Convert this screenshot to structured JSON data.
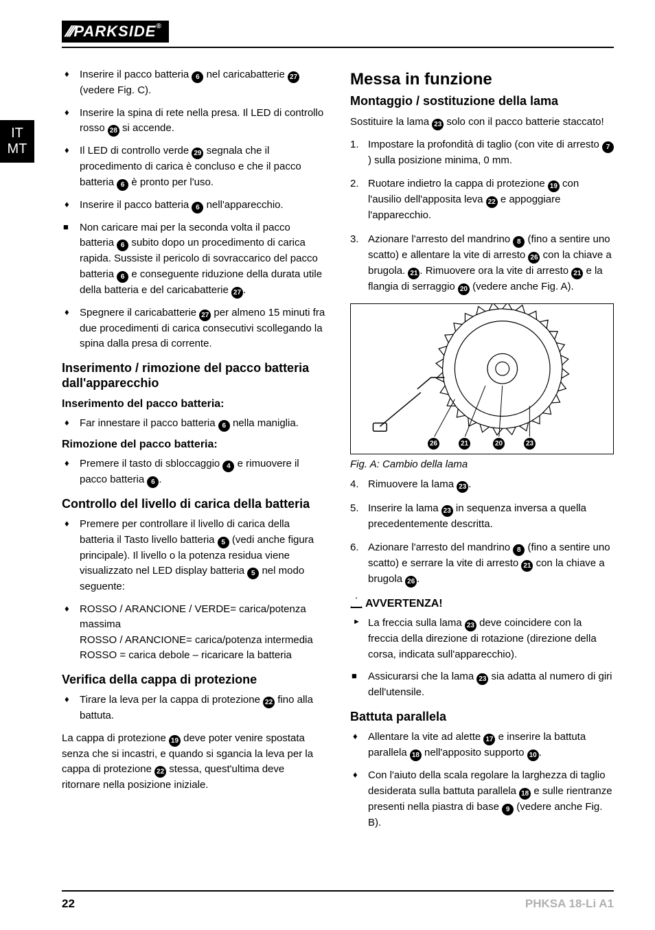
{
  "brand": "PARKSIDE",
  "lang_tab": [
    "IT",
    "MT"
  ],
  "left": {
    "bullets_top": [
      {
        "text_parts": [
          "Inserire il pacco batteria ",
          {
            "ref": "6"
          },
          " nel caricabatterie ",
          {
            "ref": "27"
          },
          " (vedere Fig. C)."
        ]
      },
      {
        "text_parts": [
          "Inserire la spina di rete nella presa. Il LED di controllo rosso ",
          {
            "ref": "28"
          },
          " si accende."
        ]
      },
      {
        "text_parts": [
          "Il LED di controllo verde ",
          {
            "ref": "29"
          },
          " segnala che il procedimento di carica è concluso e che il pacco batteria ",
          {
            "ref": "6"
          },
          " è pronto per l'uso."
        ]
      },
      {
        "text_parts": [
          "Inserire il pacco batteria ",
          {
            "ref": "6"
          },
          " nell'apparecchio."
        ]
      }
    ],
    "square_note": [
      {
        "text_parts": [
          "Non caricare mai per la seconda volta il pacco batteria ",
          {
            "ref": "6"
          },
          " subito dopo un procedimento di carica rapida. Sussiste il pericolo di sovraccarico del pacco batteria ",
          {
            "ref": "6"
          },
          " e conseguente riduzione della durata utile della batteria e del caricabatterie ",
          {
            "ref": "27"
          },
          "."
        ]
      }
    ],
    "bullets_mid": [
      {
        "text_parts": [
          "Spegnere il caricabatterie ",
          {
            "ref": "27"
          },
          " per almeno 15 minuti fra due procedimenti di carica consecutivi scollegando la spina dalla presa di corrente."
        ]
      }
    ],
    "h2_a": "Inserimento / rimozione del pacco batteria dall'apparecchio",
    "h3_a": "Inserimento del pacco batteria:",
    "bullets_a": [
      {
        "text_parts": [
          "Far innestare il pacco batteria ",
          {
            "ref": "6"
          },
          " nella maniglia."
        ]
      }
    ],
    "h3_b": "Rimozione del pacco batteria:",
    "bullets_b": [
      {
        "text_parts": [
          "Premere il tasto di sbloccaggio ",
          {
            "ref": "4"
          },
          " e rimuovere il pacco batteria ",
          {
            "ref": "6"
          },
          "."
        ]
      }
    ],
    "h2_c": "Controllo del livello di carica della batteria",
    "bullets_c": [
      {
        "text_parts": [
          "Premere per controllare il livello di carica della batteria il Tasto livello batteria ",
          {
            "ref": "5"
          },
          " (vedi anche figura principale). Il livello o la potenza residua viene visualizzato nel LED display batteria ",
          {
            "ref": "5"
          },
          " nel modo seguente:"
        ]
      },
      {
        "text_parts": [
          "ROSSO / ARANCIONE / VERDE= carica/potenza massima\nROSSO / ARANCIONE= carica/potenza intermedia\nROSSO = carica debole – ricaricare la batteria"
        ]
      }
    ],
    "h2_d": "Verifica della cappa di protezione",
    "bullets_d": [
      {
        "text_parts": [
          "Tirare la leva per la cappa di protezione ",
          {
            "ref": "22"
          },
          " fino alla battuta."
        ]
      }
    ],
    "para_d": [
      "La cappa di protezione ",
      {
        "ref": "19"
      },
      " deve poter venire spostata senza che si incastri, e quando si sgancia la leva per la cappa di protezione ",
      {
        "ref": "22"
      },
      " stessa, quest'ultima deve ritornare nella posizione iniziale."
    ]
  },
  "right": {
    "h1": "Messa in funzione",
    "h2_a": "Montaggio / sostituzione della lama",
    "intro": [
      "Sostituire la lama ",
      {
        "ref": "23"
      },
      " solo con il pacco batterie staccato!"
    ],
    "steps_1_3": [
      {
        "text_parts": [
          "Impostare la profondità di taglio (con vite di arresto ",
          {
            "ref": "7"
          },
          ") sulla posizione minima, 0 mm."
        ]
      },
      {
        "text_parts": [
          "Ruotare indietro la cappa di protezione ",
          {
            "ref": "19"
          },
          " con l'ausilio dell'apposita leva ",
          {
            "ref": "22"
          },
          " e appoggiare l'apparecchio."
        ]
      },
      {
        "text_parts": [
          "Azionare l'arresto del mandrino ",
          {
            "ref": "8"
          },
          " (fino a sentire uno scatto) e allentare la vite di arresto ",
          {
            "ref": "26"
          },
          " con la chiave a brugola. ",
          {
            "ref": "21"
          },
          ". Rimuovere ora la vite di arresto ",
          {
            "ref": "21"
          },
          " e la flangia di serraggio ",
          {
            "ref": "20"
          },
          " (vedere anche Fig. A)."
        ]
      }
    ],
    "fig_labels": [
      "26",
      "21",
      "20",
      "23"
    ],
    "fig_caption": "Fig. A: Cambio della lama",
    "steps_4_6": [
      {
        "n": "4",
        "text_parts": [
          "Rimuovere la lama ",
          {
            "ref": "23"
          },
          "."
        ]
      },
      {
        "n": "5",
        "text_parts": [
          "Inserire la lama ",
          {
            "ref": "23"
          },
          " in sequenza inversa a quella precedentemente descritta."
        ]
      },
      {
        "n": "6",
        "text_parts": [
          "Azionare l'arresto del mandrino ",
          {
            "ref": "8"
          },
          " (fino a sentire uno scatto) e serrare la vite di arresto ",
          {
            "ref": "21"
          },
          " con la chiave a brugola ",
          {
            "ref": "26"
          },
          "."
        ]
      }
    ],
    "warn_title": "AVVERTENZA!",
    "warn_arrow": [
      {
        "text_parts": [
          "La freccia sulla lama ",
          {
            "ref": "23"
          },
          " deve coincidere con la freccia della direzione di rotazione (direzione della corsa, indicata sull'apparecchio)."
        ]
      }
    ],
    "warn_square": [
      {
        "text_parts": [
          "Assicurarsi che la lama ",
          {
            "ref": "23"
          },
          " sia adatta al numero di giri dell'utensile."
        ]
      }
    ],
    "h2_b": "Battuta parallela",
    "bullets_b": [
      {
        "text_parts": [
          "Allentare la vite ad alette ",
          {
            "ref": "17"
          },
          " e inserire la battuta parallela ",
          {
            "ref": "18"
          },
          " nell'apposito supporto ",
          {
            "ref": "10"
          },
          "."
        ]
      },
      {
        "text_parts": [
          "Con l'aiuto della scala regolare la larghezza di taglio desiderata sulla battuta parallela ",
          {
            "ref": "18"
          },
          " e sulle rientranze presenti nella piastra di base ",
          {
            "ref": "9"
          },
          " (vedere anche Fig. B)."
        ]
      }
    ]
  },
  "footer": {
    "page": "22",
    "model": "PHKSA 18-Li A1"
  }
}
